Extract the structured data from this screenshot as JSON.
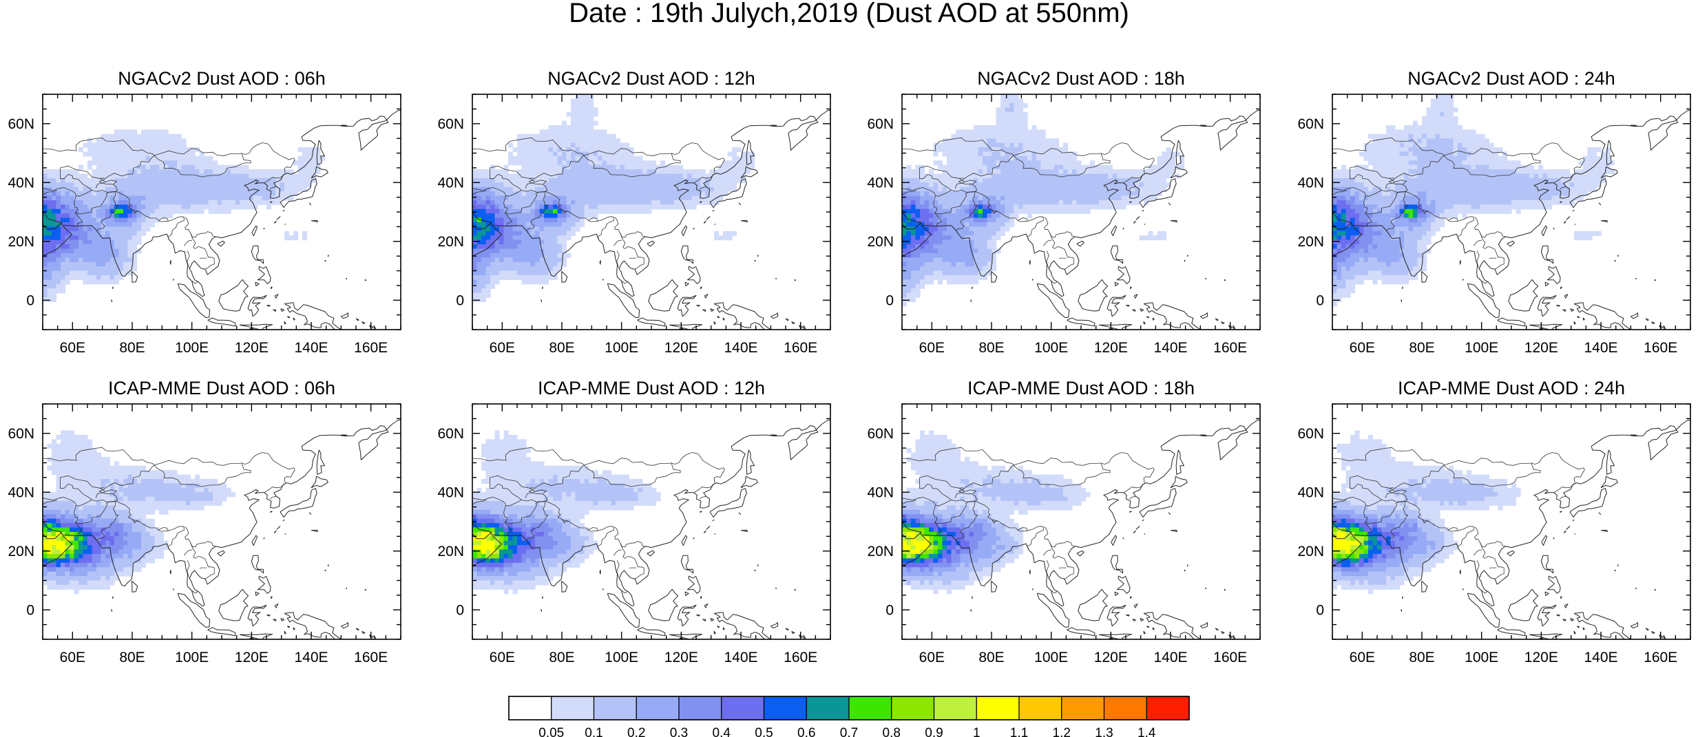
{
  "figure": {
    "title": "Date : 19th Julych,2019 (Dust AOD at 550nm)",
    "x_tick_labels": [
      "60E",
      "80E",
      "100E",
      "120E",
      "140E",
      "160E"
    ],
    "y_tick_labels": [
      "60N",
      "40N",
      "20N",
      "0"
    ],
    "extent": {
      "lon": [
        50,
        170
      ],
      "lat": [
        -10,
        70
      ]
    }
  },
  "panels": [
    {
      "title": "NGACv2 Dust AOD : 06h",
      "model": "NGACv2",
      "lead": "06h"
    },
    {
      "title": "NGACv2 Dust AOD : 12h",
      "model": "NGACv2",
      "lead": "12h"
    },
    {
      "title": "NGACv2 Dust AOD : 18h",
      "model": "NGACv2",
      "lead": "18h"
    },
    {
      "title": "NGACv2 Dust AOD : 24h",
      "model": "NGACv2",
      "lead": "24h"
    },
    {
      "title": "ICAP-MME Dust AOD : 06h",
      "model": "ICAP-MME",
      "lead": "06h"
    },
    {
      "title": "ICAP-MME Dust AOD : 12h",
      "model": "ICAP-MME",
      "lead": "12h"
    },
    {
      "title": "ICAP-MME Dust AOD : 18h",
      "model": "ICAP-MME",
      "lead": "18h"
    },
    {
      "title": "ICAP-MME Dust AOD : 24h",
      "model": "ICAP-MME",
      "lead": "24h"
    }
  ],
  "colorbar": {
    "labels": [
      "0.05",
      "0.1",
      "0.2",
      "0.3",
      "0.4",
      "0.5",
      "0.6",
      "0.7",
      "0.8",
      "0.9",
      "1",
      "1.1",
      "1.2",
      "1.3",
      "1.4"
    ],
    "colors": [
      "#ffffff",
      "#d2dcfa",
      "#b4c3f7",
      "#96aaf5",
      "#8291f0",
      "#6e6ef0",
      "#0a5ff0",
      "#0a9696",
      "#3ce600",
      "#8ce600",
      "#bef03c",
      "#ffff00",
      "#ffc800",
      "#ff9b00",
      "#ff7800",
      "#ff1e00"
    ]
  }
}
